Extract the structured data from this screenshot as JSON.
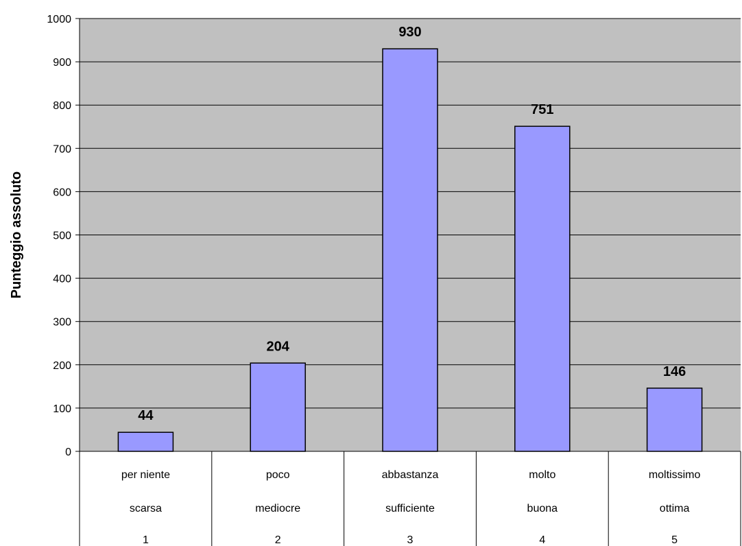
{
  "chart_data": {
    "type": "bar",
    "categories": [
      [
        "per niente",
        "scarsa",
        "1"
      ],
      [
        "poco",
        "mediocre",
        "2"
      ],
      [
        "abbastanza",
        "sufficiente",
        "3"
      ],
      [
        "molto",
        "buona",
        "4"
      ],
      [
        "moltissimo",
        "ottima",
        "5"
      ]
    ],
    "values": [
      44,
      204,
      930,
      751,
      146
    ],
    "title": "",
    "xlabel": "",
    "ylabel": "Punteggio assoluto",
    "ylim": [
      0,
      1000
    ],
    "yticks": [
      0,
      100,
      200,
      300,
      400,
      500,
      600,
      700,
      800,
      900,
      1000
    ],
    "grid": true,
    "data_labels": true,
    "colors": {
      "plot_background": "#c0c0c0",
      "bar_fill": "#9999ff",
      "bar_stroke": "#000000",
      "gridline": "#000000"
    }
  }
}
